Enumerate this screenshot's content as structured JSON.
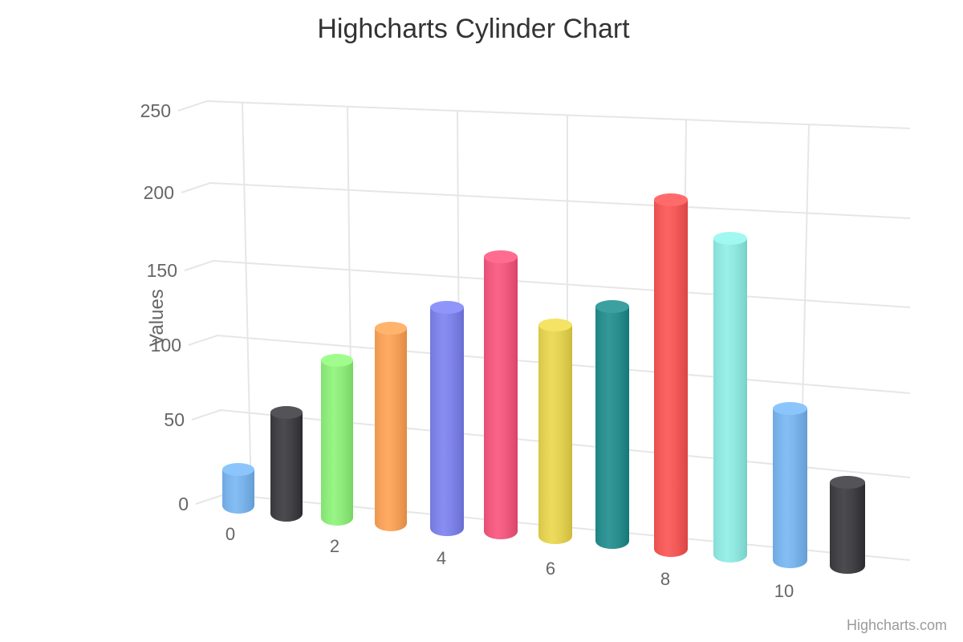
{
  "title": "Highcharts Cylinder Chart",
  "credits": {
    "label": "Highcharts.com"
  },
  "y_axis": {
    "title": "Values",
    "tick_labels": [
      "250",
      "200",
      "150",
      "100",
      "50",
      "0"
    ]
  },
  "x_axis": {
    "tick_labels": [
      "0",
      "2",
      "4",
      "6",
      "8",
      "10"
    ]
  },
  "chart_data": {
    "type": "bar",
    "subtype": "3d-cylinder-column",
    "title": "Highcharts Cylinder Chart",
    "xlabel": "",
    "ylabel": "Values",
    "x": [
      0,
      1,
      2,
      3,
      4,
      5,
      6,
      7,
      8,
      9,
      10,
      11
    ],
    "values": [
      29,
      71,
      106,
      129,
      144,
      176,
      135,
      148,
      216,
      194,
      95,
      54
    ],
    "colors": [
      "#7cb5ec",
      "#434348",
      "#90ed7d",
      "#f7a35c",
      "#8085e9",
      "#f15c80",
      "#e4d354",
      "#2b908f",
      "#f45b5b",
      "#91e8e1",
      "#7cb5ec",
      "#434348"
    ],
    "ylim": [
      0,
      250
    ],
    "y_ticks": [
      0,
      50,
      100,
      150,
      200,
      250
    ],
    "x_tick_labels": [
      "0",
      "2",
      "4",
      "6",
      "8",
      "10"
    ],
    "grid": true,
    "legend": false,
    "view_3d": true
  }
}
